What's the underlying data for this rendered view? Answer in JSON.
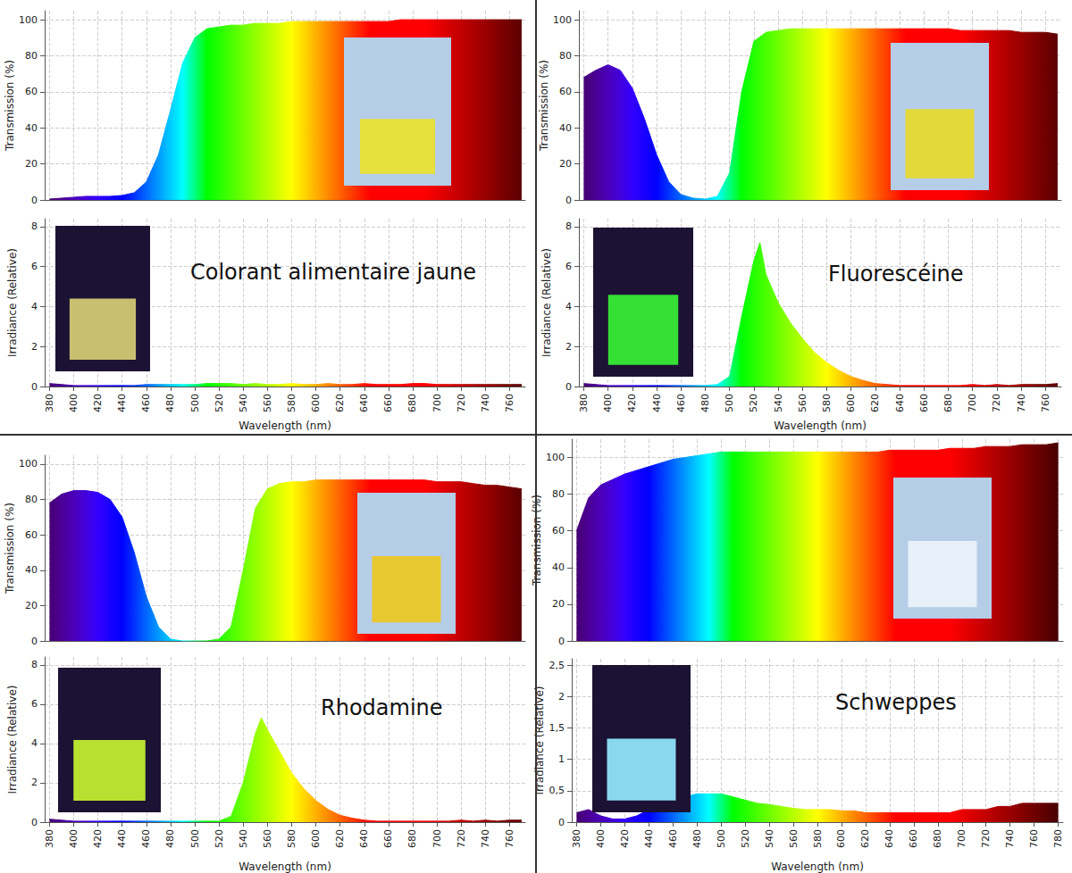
{
  "chart_data": [
    {
      "type": "area",
      "ylabel": "Transmission (%)",
      "grid": true,
      "tick_labels": "y",
      "x": [
        380,
        390,
        400,
        410,
        420,
        430,
        440,
        450,
        460,
        470,
        480,
        490,
        500,
        510,
        520,
        530,
        540,
        550,
        560,
        570,
        580,
        590,
        600,
        610,
        620,
        630,
        640,
        650,
        660,
        670,
        680,
        690,
        700,
        710,
        720,
        730,
        740,
        750,
        760,
        770
      ],
      "values": [
        0.5,
        1,
        1.5,
        2,
        2,
        2,
        2.5,
        4,
        10,
        25,
        50,
        76,
        90,
        95,
        96,
        97,
        97,
        98,
        98,
        98,
        99,
        99,
        99,
        99,
        99,
        99,
        99,
        99,
        99,
        100,
        100,
        100,
        100,
        100,
        100,
        100,
        100,
        100,
        100,
        100
      ],
      "xlim": [
        376,
        773
      ],
      "xticks": [
        380,
        400,
        420,
        440,
        460,
        480,
        500,
        520,
        540,
        560,
        580,
        600,
        620,
        640,
        660,
        680,
        700,
        720,
        740,
        760
      ],
      "ylim": [
        0,
        105
      ],
      "yticks": [
        0,
        20,
        40,
        60,
        80,
        100
      ]
    },
    {
      "type": "area",
      "title": "Colorant alimentaire jaune",
      "xlabel": "Wavelength (nm)",
      "ylabel": "Irradiance (Relative)",
      "grid": true,
      "x": [
        380,
        390,
        400,
        410,
        420,
        430,
        440,
        450,
        460,
        470,
        480,
        490,
        500,
        510,
        520,
        530,
        540,
        550,
        560,
        570,
        580,
        590,
        600,
        610,
        620,
        630,
        640,
        650,
        660,
        670,
        680,
        690,
        700,
        710,
        720,
        730,
        740,
        750,
        760,
        770
      ],
      "values": [
        0.15,
        0.1,
        0.05,
        0.05,
        0.05,
        0.05,
        0.05,
        0.05,
        0.1,
        0.1,
        0.1,
        0.1,
        0.1,
        0.15,
        0.15,
        0.15,
        0.1,
        0.15,
        0.1,
        0.1,
        0.15,
        0.1,
        0.1,
        0.15,
        0.1,
        0.1,
        0.15,
        0.1,
        0.1,
        0.1,
        0.15,
        0.15,
        0.1,
        0.1,
        0.1,
        0.1,
        0.1,
        0.1,
        0.1,
        0.1
      ],
      "xlim": [
        376,
        773
      ],
      "xticks": [
        380,
        400,
        420,
        440,
        460,
        480,
        500,
        520,
        540,
        560,
        580,
        600,
        620,
        640,
        660,
        680,
        700,
        720,
        740,
        760
      ],
      "ylim": [
        0,
        8.4
      ],
      "yticks": [
        0,
        2,
        4,
        6,
        8
      ]
    },
    {
      "type": "area",
      "ylabel": "Transmission (%)",
      "grid": true,
      "tick_labels": "y",
      "x": [
        380,
        390,
        400,
        410,
        420,
        430,
        440,
        450,
        460,
        470,
        480,
        490,
        500,
        510,
        520,
        530,
        540,
        550,
        560,
        570,
        580,
        590,
        600,
        610,
        620,
        630,
        640,
        650,
        660,
        670,
        680,
        690,
        700,
        710,
        720,
        730,
        740,
        750,
        760,
        770
      ],
      "values": [
        68,
        72,
        75,
        72,
        62,
        45,
        25,
        10,
        3,
        1,
        0.5,
        2,
        15,
        60,
        88,
        93,
        94,
        95,
        95,
        95,
        95,
        95,
        95,
        95,
        95,
        95,
        95,
        95,
        95,
        95,
        95,
        94,
        94,
        94,
        94,
        94,
        93,
        93,
        93,
        92
      ],
      "xlim": [
        376,
        773
      ],
      "xticks": [
        380,
        400,
        420,
        440,
        460,
        480,
        500,
        520,
        540,
        560,
        580,
        600,
        620,
        640,
        660,
        680,
        700,
        720,
        740,
        760
      ],
      "ylim": [
        0,
        105
      ],
      "yticks": [
        0,
        20,
        40,
        60,
        80,
        100
      ]
    },
    {
      "type": "area",
      "title": "Fluorescéine",
      "xlabel": "Wavelength (nm)",
      "ylabel": "Irradiance (Relative)",
      "grid": true,
      "x": [
        380,
        390,
        400,
        410,
        420,
        430,
        440,
        450,
        460,
        470,
        480,
        490,
        500,
        510,
        520,
        525,
        530,
        540,
        550,
        560,
        570,
        580,
        590,
        600,
        610,
        620,
        630,
        640,
        650,
        660,
        670,
        680,
        690,
        700,
        710,
        720,
        730,
        740,
        750,
        760,
        770
      ],
      "values": [
        0.15,
        0.1,
        0.05,
        0.05,
        0.05,
        0.05,
        0.05,
        0.05,
        0.05,
        0.05,
        0.05,
        0.1,
        0.5,
        3.5,
        6.3,
        7.2,
        5.6,
        4.2,
        3.2,
        2.4,
        1.7,
        1.2,
        0.8,
        0.5,
        0.3,
        0.15,
        0.1,
        0.05,
        0.05,
        0.05,
        0.05,
        0.05,
        0.05,
        0.1,
        0.05,
        0.1,
        0.05,
        0.1,
        0.1,
        0.1,
        0.15
      ],
      "xlim": [
        376,
        773
      ],
      "xticks": [
        380,
        400,
        420,
        440,
        460,
        480,
        500,
        520,
        540,
        560,
        580,
        600,
        620,
        640,
        660,
        680,
        700,
        720,
        740,
        760
      ],
      "ylim": [
        0,
        8.4
      ],
      "yticks": [
        0,
        2,
        4,
        6,
        8
      ]
    },
    {
      "type": "area",
      "ylabel": "Transmission (%)",
      "grid": true,
      "tick_labels": "y",
      "x": [
        380,
        390,
        400,
        410,
        420,
        430,
        440,
        450,
        460,
        470,
        480,
        490,
        500,
        510,
        520,
        530,
        540,
        550,
        560,
        570,
        580,
        590,
        600,
        610,
        620,
        630,
        640,
        650,
        660,
        670,
        680,
        690,
        700,
        710,
        720,
        730,
        740,
        750,
        760,
        770
      ],
      "values": [
        78,
        83,
        85,
        85,
        84,
        80,
        70,
        50,
        25,
        8,
        1,
        0,
        0,
        0,
        1,
        8,
        40,
        75,
        86,
        89,
        90,
        90,
        91,
        91,
        91,
        91,
        91,
        91,
        91,
        91,
        91,
        91,
        90,
        90,
        90,
        89,
        88,
        88,
        87,
        86
      ],
      "xlim": [
        376,
        773
      ],
      "xticks": [
        380,
        400,
        420,
        440,
        460,
        480,
        500,
        520,
        540,
        560,
        580,
        600,
        620,
        640,
        660,
        680,
        700,
        720,
        740,
        760
      ],
      "ylim": [
        0,
        105
      ],
      "yticks": [
        0,
        20,
        40,
        60,
        80,
        100
      ]
    },
    {
      "type": "area",
      "title": "Rhodamine",
      "xlabel": "Wavelength (nm)",
      "ylabel": "Irradiance (Relative)",
      "grid": true,
      "x": [
        380,
        390,
        400,
        410,
        420,
        430,
        440,
        450,
        460,
        470,
        480,
        490,
        500,
        510,
        520,
        530,
        540,
        550,
        555,
        560,
        570,
        580,
        590,
        600,
        610,
        620,
        630,
        640,
        650,
        660,
        670,
        680,
        690,
        700,
        710,
        720,
        730,
        740,
        750,
        760,
        770
      ],
      "values": [
        0.15,
        0.1,
        0.05,
        0.05,
        0.05,
        0.05,
        0.05,
        0.05,
        0.05,
        0.05,
        0.05,
        0.05,
        0.05,
        0.05,
        0.05,
        0.3,
        2.0,
        4.5,
        5.3,
        4.7,
        3.6,
        2.5,
        1.7,
        1.1,
        0.65,
        0.35,
        0.2,
        0.1,
        0.05,
        0.05,
        0.05,
        0.05,
        0.05,
        0.05,
        0.05,
        0.1,
        0.05,
        0.1,
        0.05,
        0.1,
        0.1
      ],
      "xlim": [
        376,
        773
      ],
      "xticks": [
        380,
        400,
        420,
        440,
        460,
        480,
        500,
        520,
        540,
        560,
        580,
        600,
        620,
        640,
        660,
        680,
        700,
        720,
        740,
        760
      ],
      "ylim": [
        0,
        8.4
      ],
      "yticks": [
        0,
        2,
        4,
        6,
        8
      ]
    },
    {
      "type": "area",
      "ylabel": "Transmission (%)",
      "grid": true,
      "tick_labels": "y",
      "x": [
        380,
        390,
        400,
        410,
        420,
        430,
        440,
        450,
        460,
        470,
        480,
        490,
        500,
        510,
        520,
        530,
        540,
        550,
        560,
        570,
        580,
        590,
        600,
        610,
        620,
        630,
        640,
        650,
        660,
        670,
        680,
        690,
        700,
        710,
        720,
        730,
        740,
        750,
        760,
        770,
        780
      ],
      "values": [
        60,
        78,
        85,
        88,
        91,
        93,
        95,
        97,
        99,
        100,
        101,
        102,
        103,
        103,
        103,
        103,
        103,
        103,
        103,
        103,
        103,
        103,
        103,
        103,
        103,
        103,
        104,
        104,
        104,
        104,
        104,
        105,
        105,
        105,
        106,
        106,
        106,
        107,
        107,
        107,
        108
      ],
      "xlim": [
        376,
        784
      ],
      "xticks": [
        380,
        400,
        420,
        440,
        460,
        480,
        500,
        520,
        540,
        560,
        580,
        600,
        620,
        640,
        660,
        680,
        700,
        720,
        740,
        760,
        780
      ],
      "ylim": [
        0,
        110
      ],
      "yticks": [
        0,
        20,
        40,
        60,
        80,
        100
      ]
    },
    {
      "type": "area",
      "title": "Schweppes",
      "xlabel": "Wavelength (nm)",
      "ylabel": "Irradiance (Relative)",
      "grid": true,
      "x": [
        380,
        390,
        400,
        410,
        420,
        430,
        440,
        450,
        460,
        470,
        480,
        490,
        500,
        510,
        520,
        530,
        540,
        550,
        560,
        570,
        580,
        590,
        600,
        610,
        620,
        630,
        640,
        650,
        660,
        670,
        680,
        690,
        700,
        710,
        720,
        730,
        740,
        750,
        760,
        770,
        780
      ],
      "values": [
        0.15,
        0.2,
        0.1,
        0.05,
        0.05,
        0.1,
        0.2,
        0.3,
        0.35,
        0.4,
        0.45,
        0.45,
        0.45,
        0.4,
        0.35,
        0.3,
        0.28,
        0.25,
        0.22,
        0.2,
        0.2,
        0.2,
        0.18,
        0.18,
        0.15,
        0.15,
        0.15,
        0.15,
        0.15,
        0.15,
        0.15,
        0.15,
        0.2,
        0.2,
        0.2,
        0.25,
        0.25,
        0.3,
        0.3,
        0.3,
        0.3
      ],
      "xlim": [
        376,
        784
      ],
      "xticks": [
        380,
        400,
        420,
        440,
        460,
        480,
        500,
        520,
        540,
        560,
        580,
        600,
        620,
        640,
        660,
        680,
        700,
        720,
        740,
        760,
        780
      ],
      "ylim": [
        0,
        2.6
      ],
      "yticks": [
        0,
        {
          "value": 0.5,
          "label": "0,5"
        },
        1,
        {
          "value": 1.5,
          "label": "1,5"
        },
        2,
        {
          "value": 2.5,
          "label": "2,5"
        }
      ]
    }
  ]
}
